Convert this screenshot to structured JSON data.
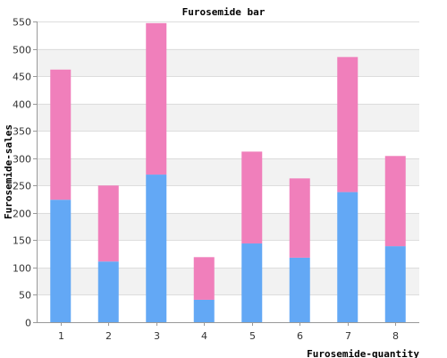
{
  "chart_data": {
    "type": "bar",
    "stacked": true,
    "title": "Furosemide bar",
    "xlabel": "Furosemide-quantity",
    "ylabel": "Furosemide-sales",
    "categories": [
      "1",
      "2",
      "3",
      "4",
      "5",
      "6",
      "7",
      "8"
    ],
    "series": [
      {
        "color": "#63a8f5",
        "values": [
          224,
          111,
          270,
          41,
          144,
          118,
          238,
          139
        ]
      },
      {
        "color": "#f07fbb",
        "values": [
          238,
          139,
          277,
          78,
          168,
          145,
          247,
          165
        ]
      }
    ],
    "ylim": [
      0,
      550
    ],
    "yticks": [
      0,
      50,
      100,
      150,
      200,
      250,
      300,
      350,
      400,
      450,
      500,
      550
    ],
    "grid": true,
    "band_colors": [
      "#ffffff",
      "#f2f2f2"
    ]
  }
}
